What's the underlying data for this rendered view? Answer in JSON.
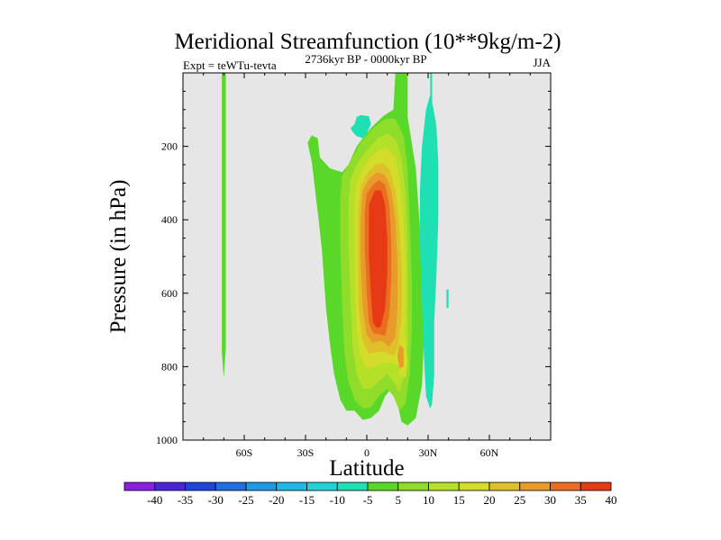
{
  "chart_data": {
    "type": "heatmap",
    "title": "Meridional Streamfunction (10**9kg/m-2)",
    "subtitle_left": "Expt = teWTu-tevta",
    "subtitle_center": "2736kyr BP - 0000kyr BP",
    "subtitle_right": "JJA",
    "xlabel": "Latitude",
    "ylabel": "Pressure (in hPa)",
    "xlim": [
      -90,
      90
    ],
    "ylim": [
      1000,
      0
    ],
    "x_ticks": [
      {
        "value": -60,
        "label": "60S"
      },
      {
        "value": -30,
        "label": "30S"
      },
      {
        "value": 0,
        "label": "0"
      },
      {
        "value": 30,
        "label": "30N"
      },
      {
        "value": 60,
        "label": "60N"
      }
    ],
    "y_ticks": [
      {
        "value": 200,
        "label": "200"
      },
      {
        "value": 400,
        "label": "400"
      },
      {
        "value": 600,
        "label": "600"
      },
      {
        "value": 800,
        "label": "800"
      },
      {
        "value": 1000,
        "label": "1000"
      }
    ],
    "colorbar": {
      "labels": [
        "-40",
        "-35",
        "-30",
        "-25",
        "-20",
        "-15",
        "-10",
        "-5",
        "5",
        "10",
        "15",
        "20",
        "25",
        "30",
        "35",
        "40"
      ],
      "colors": [
        "#8a1fe0",
        "#4a25d8",
        "#1f45d8",
        "#1f6fe0",
        "#1f98e6",
        "#1fb8e6",
        "#1fd3d6",
        "#1fe0b3",
        "#5ad82a",
        "#8fdc2a",
        "#b4e02a",
        "#d4dc2a",
        "#e0c02a",
        "#e89a2a",
        "#ea6e22",
        "#e63a14"
      ]
    },
    "background_color": "#e6e6e6",
    "contours": [
      {
        "level": 5,
        "color": "#5ad82a",
        "points": [
          [
            -70,
            0
          ],
          [
            -69,
            0
          ],
          [
            -69,
            750
          ],
          [
            -70,
            830
          ],
          [
            -71,
            760
          ],
          [
            -71,
            0
          ]
        ]
      },
      {
        "level": 5,
        "color": "#5ad82a",
        "points": [
          [
            -27,
            170
          ],
          [
            -24,
            178
          ],
          [
            -23,
            230
          ],
          [
            -18,
            260
          ],
          [
            -12,
            270
          ],
          [
            -9,
            250
          ],
          [
            -5,
            200
          ],
          [
            2,
            150
          ],
          [
            8,
            118
          ],
          [
            13,
            100
          ],
          [
            14,
            0
          ],
          [
            20,
            0
          ],
          [
            20,
            120
          ],
          [
            24,
            260
          ],
          [
            26,
            420
          ],
          [
            27,
            560
          ],
          [
            28,
            720
          ],
          [
            27,
            850
          ],
          [
            24,
            940
          ],
          [
            20,
            960
          ],
          [
            17,
            950
          ],
          [
            15,
            900
          ],
          [
            12,
            860
          ],
          [
            9,
            880
          ],
          [
            6,
            920
          ],
          [
            2,
            940
          ],
          [
            -2,
            945
          ],
          [
            -6,
            920
          ],
          [
            -10,
            920
          ],
          [
            -13,
            890
          ],
          [
            -16,
            820
          ],
          [
            -18,
            740
          ],
          [
            -20,
            640
          ],
          [
            -22,
            480
          ],
          [
            -24,
            380
          ],
          [
            -27,
            240
          ],
          [
            -29,
            190
          ]
        ]
      },
      {
        "level": 10,
        "color": "#8fdc2a",
        "points": [
          [
            -12,
            280
          ],
          [
            -8,
            240
          ],
          [
            -3,
            190
          ],
          [
            3,
            150
          ],
          [
            9,
            125
          ],
          [
            14,
            125
          ],
          [
            18,
            170
          ],
          [
            20,
            260
          ],
          [
            21,
            400
          ],
          [
            22,
            560
          ],
          [
            22,
            700
          ],
          [
            21,
            820
          ],
          [
            19,
            900
          ],
          [
            16,
            920
          ],
          [
            13,
            880
          ],
          [
            10,
            860
          ],
          [
            6,
            880
          ],
          [
            2,
            910
          ],
          [
            -2,
            915
          ],
          [
            -6,
            890
          ],
          [
            -9,
            840
          ],
          [
            -11,
            760
          ],
          [
            -12,
            640
          ],
          [
            -13,
            460
          ],
          [
            -13,
            340
          ]
        ]
      },
      {
        "level": 15,
        "color": "#b4e02a",
        "points": [
          [
            -8,
            290
          ],
          [
            -5,
            250
          ],
          [
            0,
            210
          ],
          [
            5,
            180
          ],
          [
            10,
            165
          ],
          [
            14,
            180
          ],
          [
            17,
            230
          ],
          [
            19,
            330
          ],
          [
            20,
            460
          ],
          [
            20,
            600
          ],
          [
            20,
            740
          ],
          [
            18,
            830
          ],
          [
            16,
            870
          ],
          [
            13,
            840
          ],
          [
            10,
            820
          ],
          [
            6,
            840
          ],
          [
            2,
            860
          ],
          [
            -2,
            860
          ],
          [
            -5,
            820
          ],
          [
            -7,
            740
          ],
          [
            -8,
            620
          ],
          [
            -9,
            460
          ],
          [
            -9,
            350
          ]
        ]
      },
      {
        "level": 20,
        "color": "#d4dc2a",
        "points": [
          [
            -5,
            300
          ],
          [
            -2,
            260
          ],
          [
            2,
            230
          ],
          [
            6,
            210
          ],
          [
            10,
            205
          ],
          [
            14,
            230
          ],
          [
            16,
            290
          ],
          [
            18,
            400
          ],
          [
            19,
            520
          ],
          [
            19,
            640
          ],
          [
            18,
            740
          ],
          [
            16,
            800
          ],
          [
            12,
            790
          ],
          [
            8,
            790
          ],
          [
            4,
            800
          ],
          [
            0,
            805
          ],
          [
            -3,
            770
          ],
          [
            -5,
            700
          ],
          [
            -6,
            580
          ],
          [
            -6,
            440
          ],
          [
            -6,
            350
          ]
        ]
      },
      {
        "level": 25,
        "color": "#e0c02a",
        "points": [
          [
            -3,
            310
          ],
          [
            0,
            275
          ],
          [
            4,
            250
          ],
          [
            8,
            245
          ],
          [
            11,
            260
          ],
          [
            14,
            320
          ],
          [
            16,
            420
          ],
          [
            17,
            540
          ],
          [
            17,
            660
          ],
          [
            16,
            740
          ],
          [
            13,
            770
          ],
          [
            9,
            760
          ],
          [
            5,
            760
          ],
          [
            1,
            765
          ],
          [
            -2,
            730
          ],
          [
            -4,
            640
          ],
          [
            -4,
            500
          ],
          [
            -4,
            380
          ]
        ]
      },
      {
        "level": 30,
        "color": "#e89a2a",
        "points": [
          [
            -2,
            320
          ],
          [
            1,
            290
          ],
          [
            5,
            270
          ],
          [
            9,
            278
          ],
          [
            12,
            320
          ],
          [
            14,
            400
          ],
          [
            15,
            520
          ],
          [
            15,
            640
          ],
          [
            14,
            720
          ],
          [
            11,
            745
          ],
          [
            7,
            730
          ],
          [
            3,
            735
          ],
          [
            0,
            715
          ],
          [
            -2,
            640
          ],
          [
            -3,
            520
          ],
          [
            -3,
            400
          ]
        ]
      },
      {
        "level": 35,
        "color": "#ea6e22",
        "points": [
          [
            0,
            330
          ],
          [
            3,
            305
          ],
          [
            6,
            292
          ],
          [
            9,
            305
          ],
          [
            11,
            360
          ],
          [
            12,
            460
          ],
          [
            12,
            560
          ],
          [
            11,
            660
          ],
          [
            9,
            715
          ],
          [
            6,
            712
          ],
          [
            3,
            708
          ],
          [
            1,
            680
          ],
          [
            0,
            600
          ],
          [
            -1,
            480
          ],
          [
            -1,
            380
          ]
        ]
      },
      {
        "level": 40,
        "color": "#e63a14",
        "points": [
          [
            1,
            360
          ],
          [
            4,
            320
          ],
          [
            7,
            320
          ],
          [
            9,
            360
          ],
          [
            10,
            450
          ],
          [
            10,
            550
          ],
          [
            9,
            640
          ],
          [
            7,
            690
          ],
          [
            5,
            695
          ],
          [
            3,
            680
          ],
          [
            2,
            600
          ],
          [
            1,
            500
          ]
        ]
      },
      {
        "level": 20,
        "color": "#d4dc2a",
        "points": [
          [
            16,
            700
          ],
          [
            19,
            720
          ],
          [
            20,
            790
          ],
          [
            19,
            830
          ],
          [
            16,
            820
          ],
          [
            15,
            760
          ]
        ]
      },
      {
        "level": 30,
        "color": "#e89a2a",
        "points": [
          [
            16,
            740
          ],
          [
            18,
            750
          ],
          [
            18,
            800
          ],
          [
            16,
            805
          ],
          [
            15,
            770
          ]
        ]
      },
      {
        "level": -5,
        "color": "#1fe0b3",
        "points": [
          [
            31,
            0
          ],
          [
            32,
            0
          ],
          [
            32,
            80
          ],
          [
            34,
            140
          ],
          [
            35,
            240
          ],
          [
            35,
            400
          ],
          [
            34,
            560
          ],
          [
            33,
            680
          ],
          [
            33,
            820
          ],
          [
            32,
            900
          ],
          [
            31,
            915
          ],
          [
            29,
            880
          ],
          [
            28,
            780
          ],
          [
            27,
            620
          ],
          [
            26,
            460
          ],
          [
            26,
            320
          ],
          [
            27,
            200
          ],
          [
            29,
            100
          ],
          [
            31,
            60
          ]
        ]
      },
      {
        "level": -5,
        "color": "#1fe0b3",
        "points": [
          [
            -5,
            120
          ],
          [
            -3,
            115
          ],
          [
            1,
            118
          ],
          [
            2,
            140
          ],
          [
            0,
            165
          ],
          [
            -2,
            178
          ],
          [
            -5,
            172
          ],
          [
            -7,
            160
          ],
          [
            -8,
            150
          ],
          [
            -6,
            140
          ]
        ]
      },
      {
        "level": -5,
        "color": "#1fe0b3",
        "points": [
          [
            39,
            590
          ],
          [
            40,
            590
          ],
          [
            40,
            640
          ],
          [
            39,
            640
          ]
        ]
      }
    ]
  }
}
